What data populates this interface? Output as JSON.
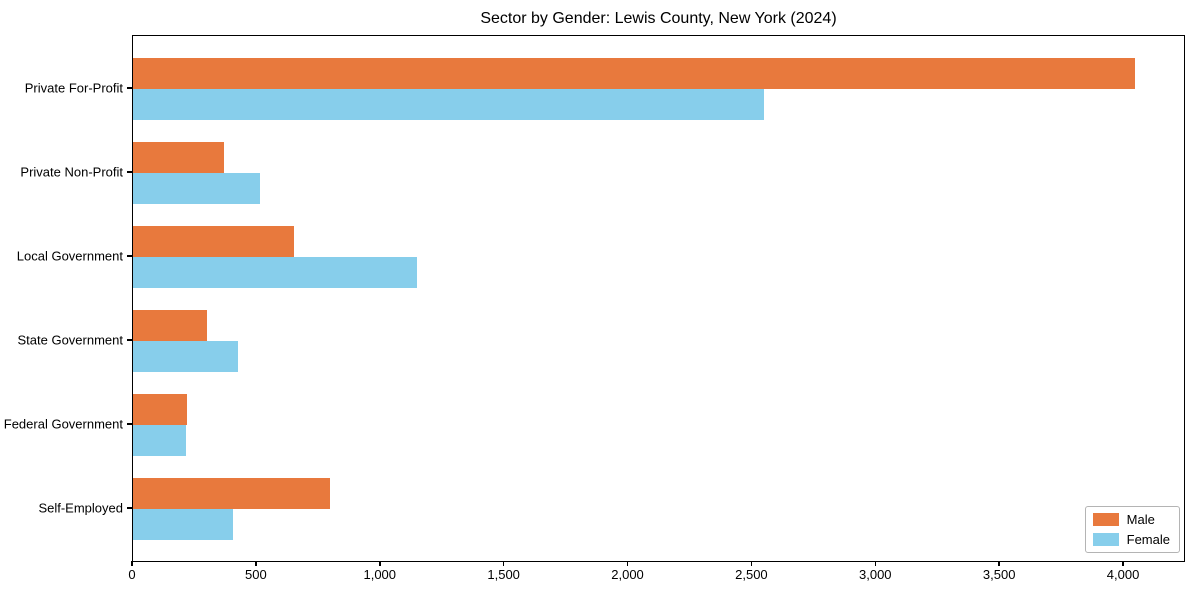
{
  "chart_data": {
    "type": "bar",
    "orientation": "horizontal",
    "title": "Sector by Gender: Lewis County, New York (2024)",
    "categories": [
      "Private For-Profit",
      "Private Non-Profit",
      "Local Government",
      "State Government",
      "Federal Government",
      "Self-Employed"
    ],
    "series": [
      {
        "name": "Male",
        "color": "#E8793D",
        "values": [
          4050,
          370,
          650,
          300,
          220,
          795
        ]
      },
      {
        "name": "Female",
        "color": "#87CEEB",
        "values": [
          2550,
          515,
          1150,
          425,
          215,
          405
        ]
      }
    ],
    "xlabel": "",
    "ylabel": "",
    "xlim": [
      0,
      4250
    ],
    "x_ticks": [
      0,
      500,
      1000,
      1500,
      2000,
      2500,
      3000,
      3500,
      4000
    ],
    "x_tick_labels": [
      "0",
      "500",
      "1,000",
      "1,500",
      "2,000",
      "2,500",
      "3,000",
      "3,500",
      "4,000"
    ],
    "grid": false,
    "legend": {
      "position": "lower right",
      "entries": [
        "Male",
        "Female"
      ]
    }
  }
}
